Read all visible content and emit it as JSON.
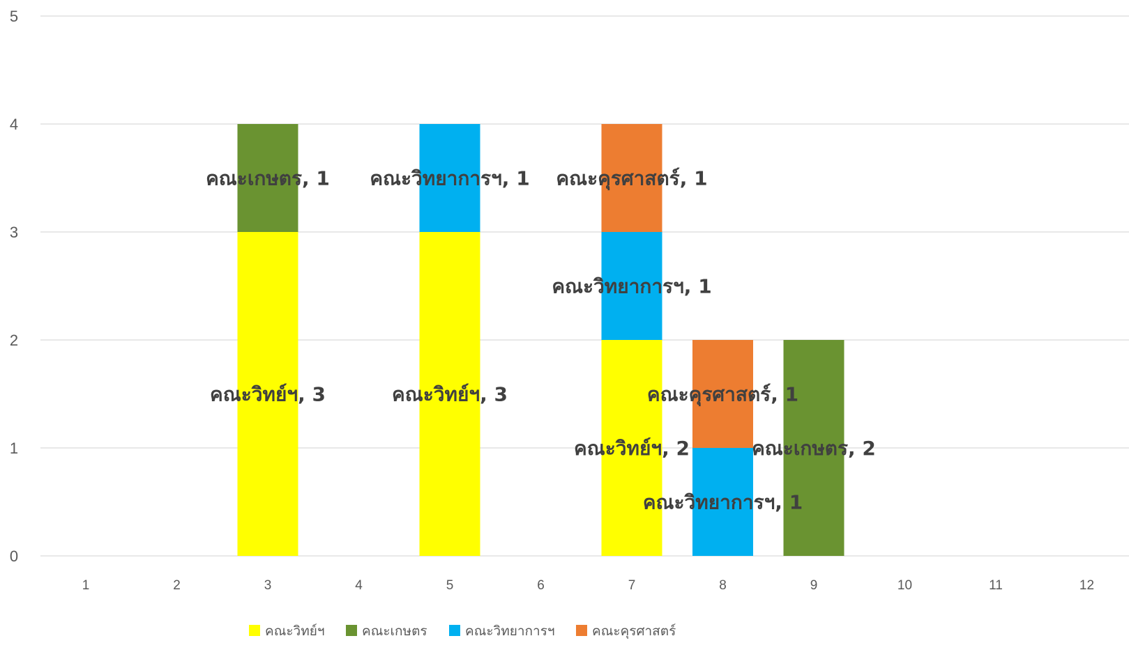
{
  "chart_data": {
    "type": "bar",
    "stacked": true,
    "categories": [
      "1",
      "2",
      "3",
      "4",
      "5",
      "6",
      "7",
      "8",
      "9",
      "10",
      "11",
      "12"
    ],
    "y_ticks": [
      "0",
      "1",
      "2",
      "3",
      "4",
      "5"
    ],
    "ylim": [
      0,
      5
    ],
    "grid": true,
    "legend_position": "bottom",
    "series": [
      {
        "name": "คณะวิทย์ฯ",
        "color": "#FFFF00",
        "values": [
          0,
          0,
          3,
          0,
          3,
          0,
          2,
          0,
          0,
          0,
          0,
          0
        ],
        "labels": [
          "",
          "",
          "คณะวิทย์ฯ, 3",
          "",
          "คณะวิทย์ฯ, 3",
          "",
          "คณะวิทย์ฯ, 2",
          "",
          "",
          "",
          "",
          ""
        ]
      },
      {
        "name": "คณะเกษตร",
        "color": "#6A9331",
        "values": [
          0,
          0,
          1,
          0,
          0,
          0,
          0,
          0,
          2,
          0,
          0,
          0
        ],
        "labels": [
          "",
          "",
          "คณะเกษตร, 1",
          "",
          "",
          "",
          "",
          "",
          "คณะเกษตร, 2",
          "",
          "",
          ""
        ]
      },
      {
        "name": "คณะวิทยาการฯ",
        "color": "#00B0F0",
        "values": [
          0,
          0,
          0,
          0,
          1,
          0,
          1,
          1,
          0,
          0,
          0,
          0
        ],
        "labels": [
          "",
          "",
          "",
          "",
          "คณะวิทยาการฯ, 1",
          "",
          "คณะวิทยาการฯ, 1",
          "คณะวิทยาการฯ, 1",
          "",
          "",
          "",
          ""
        ]
      },
      {
        "name": "คณะคุรศาสตร์",
        "color": "#ED7D31",
        "values": [
          0,
          0,
          0,
          0,
          0,
          0,
          1,
          1,
          0,
          0,
          0,
          0
        ],
        "labels": [
          "",
          "",
          "",
          "",
          "",
          "",
          "คณะคุรศาสตร์, 1",
          "คณะคุรศาสตร์, 1",
          "",
          "",
          "",
          ""
        ]
      }
    ]
  }
}
